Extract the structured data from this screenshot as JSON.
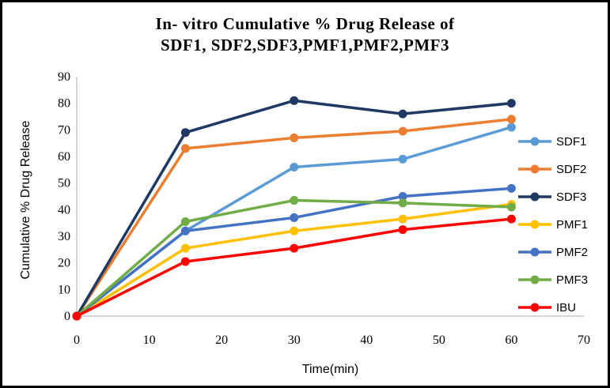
{
  "title_line1": "In- vitro Cumulative % Drug Release of",
  "title_line2": "SDF1, SDF2,SDF3,PMF1,PMF2,PMF3",
  "chart_data": {
    "type": "line",
    "title": "In- vitro Cumulative % Drug Release of SDF1, SDF2,SDF3,PMF1,PMF2,PMF3",
    "xlabel": "Time(min)",
    "ylabel": "Cumulative % Drug Release",
    "x": [
      0,
      15,
      30,
      45,
      60
    ],
    "series": [
      {
        "name": "SDF1",
        "color": "#5B9BD5",
        "values": [
          0,
          32,
          56,
          59,
          71
        ]
      },
      {
        "name": "SDF2",
        "color": "#ED7D31",
        "values": [
          0,
          63,
          67,
          69.5,
          74
        ]
      },
      {
        "name": "SDF3",
        "color": "#1F3864",
        "values": [
          0,
          69,
          81,
          76,
          80
        ]
      },
      {
        "name": "PMF1",
        "color": "#FFC000",
        "values": [
          0,
          25.5,
          32,
          36.5,
          42
        ]
      },
      {
        "name": "PMF2",
        "color": "#4472C4",
        "values": [
          0,
          32,
          37,
          45,
          48
        ]
      },
      {
        "name": "PMF3",
        "color": "#70AD47",
        "values": [
          0,
          35.5,
          43.5,
          42.5,
          41
        ]
      },
      {
        "name": "IBU",
        "color": "#FF0000",
        "values": [
          0,
          20.5,
          25.5,
          32.5,
          36.5
        ]
      }
    ],
    "xlim": [
      0,
      70
    ],
    "ylim": [
      0,
      90
    ],
    "x_ticks": [
      0,
      10,
      20,
      30,
      40,
      50,
      60,
      70
    ],
    "y_ticks": [
      0,
      10,
      20,
      30,
      40,
      50,
      60,
      70,
      80,
      90
    ],
    "grid": false,
    "legend_position": "right",
    "marker": "circle",
    "axis_color": "#BFBFBF",
    "text_color": "#000000"
  }
}
